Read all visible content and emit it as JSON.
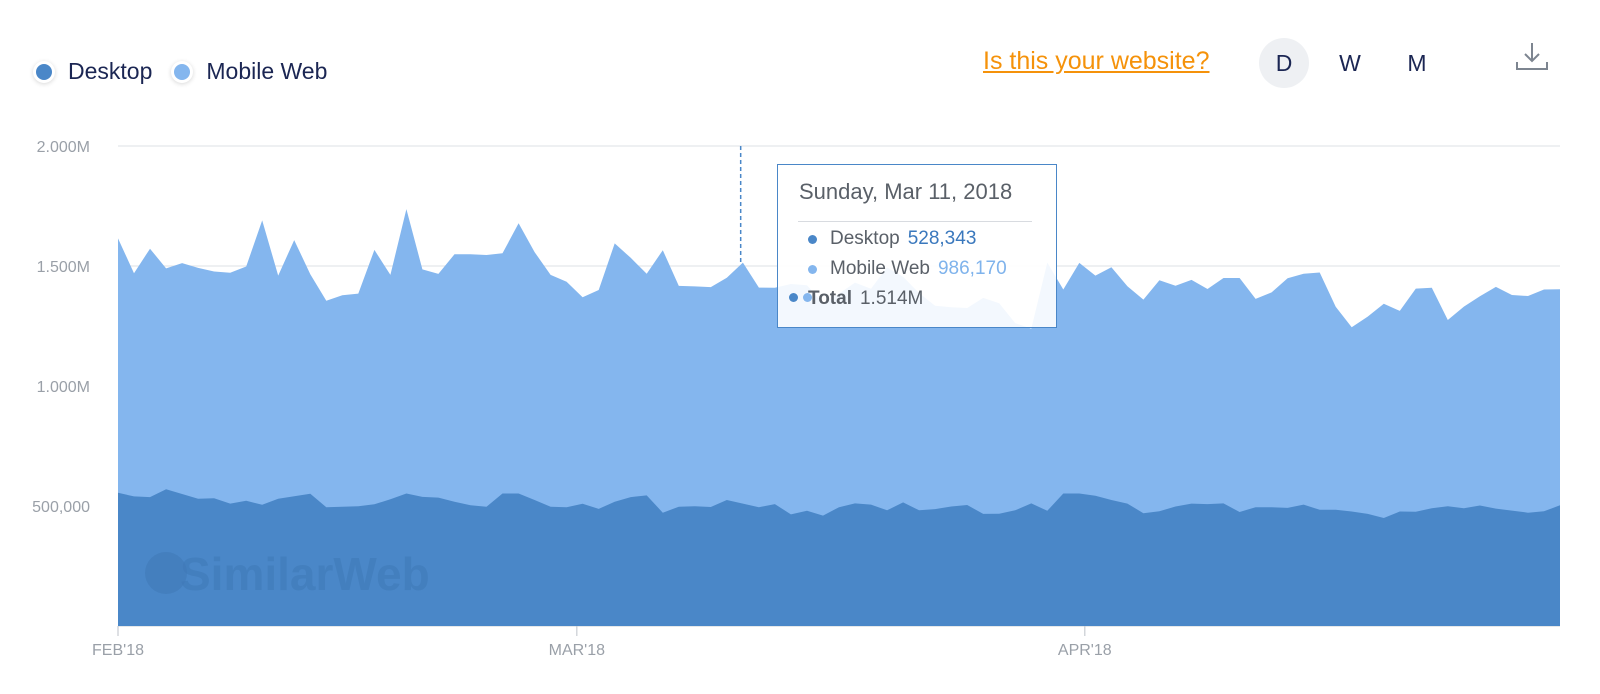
{
  "legend": [
    {
      "label": "Desktop",
      "color": "#4a87c8"
    },
    {
      "label": "Mobile Web",
      "color": "#84b6ee"
    }
  ],
  "header": {
    "website_link": "Is this your website?",
    "period_buttons": [
      "D",
      "W",
      "M"
    ],
    "active_period": "D",
    "download_icon": "download-icon"
  },
  "watermark": "SimilarWeb",
  "tooltip": {
    "date": "Sunday, Mar 11, 2018",
    "desktop_label": "Desktop",
    "desktop_value": "528,343",
    "mobile_label": "Mobile Web",
    "mobile_value": "986,170",
    "total_label": "Total",
    "total_value": "1.514M"
  },
  "chart_data": {
    "type": "area",
    "stacked": true,
    "x_start": "2018-02-01",
    "x_end": "2018-04-30",
    "x_tick_labels": [
      "FEB'18",
      "MAR'18",
      "APR'18"
    ],
    "y_tick_labels": [
      "2.000M",
      "1.500M",
      "1.000M",
      "500,000"
    ],
    "y_ticks": [
      2000000,
      1500000,
      1000000,
      500000
    ],
    "ylim": [
      0,
      2000000
    ],
    "grid": true,
    "legend_position": "top-left",
    "series": [
      {
        "name": "Desktop",
        "color": "#4a87c8",
        "values": [
          555000,
          540000,
          537000,
          570000,
          550000,
          530000,
          532000,
          510000,
          522000,
          505000,
          530000,
          541000,
          551000,
          495000,
          497000,
          499000,
          507000,
          528000,
          552000,
          538000,
          535000,
          518000,
          503000,
          497000,
          552000,
          552000,
          525000,
          497000,
          495000,
          509000,
          488000,
          518000,
          537000,
          544000,
          472000,
          497000,
          499000,
          496000,
          525000,
          510000,
          495000,
          508000,
          465000,
          480000,
          460000,
          495000,
          511000,
          506000,
          482000,
          515000,
          482000,
          487000,
          498000,
          504000,
          467000,
          468000,
          482000,
          511000,
          480000,
          552000,
          552000,
          543000,
          525000,
          510000,
          470000,
          478000,
          498000,
          510000,
          508000,
          511000,
          475000,
          495000,
          495000,
          492000,
          506000,
          484000,
          484000,
          477000,
          467000,
          450000,
          477000,
          476000,
          491000,
          499000,
          491000,
          502000,
          489000,
          481000,
          472000,
          478000,
          503000
        ]
      },
      {
        "name": "Mobile Web",
        "color": "#84b6ee",
        "values": [
          1060000,
          930000,
          1035000,
          920000,
          962000,
          962000,
          945000,
          962000,
          976000,
          1185000,
          930000,
          1067000,
          915000,
          860000,
          881000,
          886000,
          1060000,
          935000,
          1185000,
          948000,
          932000,
          1031000,
          1046000,
          1049000,
          1001000,
          1126000,
          1033000,
          966000,
          939000,
          861000,
          912000,
          1076000,
          997000,
          924000,
          1094000,
          920000,
          916000,
          916000,
          926000,
          1004000,
          915000,
          901000,
          960000,
          940000,
          885000,
          890000,
          920000,
          899000,
          1012000,
          940000,
          905000,
          847000,
          830000,
          821000,
          900000,
          877000,
          780000,
          728000,
          1034000,
          850000,
          961000,
          917000,
          970000,
          906000,
          890000,
          963000,
          920000,
          932000,
          896000,
          939000,
          975000,
          868000,
          895000,
          957000,
          962000,
          989000,
          846000,
          768000,
          822000,
          893000,
          836000,
          930000,
          918000,
          776000,
          840000,
          872000,
          924000,
          898000,
          903000,
          924000,
          900000
        ]
      }
    ],
    "hover": {
      "date": "2018-03-11",
      "desktop": 528343,
      "mobile": 986170,
      "total": 1514000
    }
  }
}
